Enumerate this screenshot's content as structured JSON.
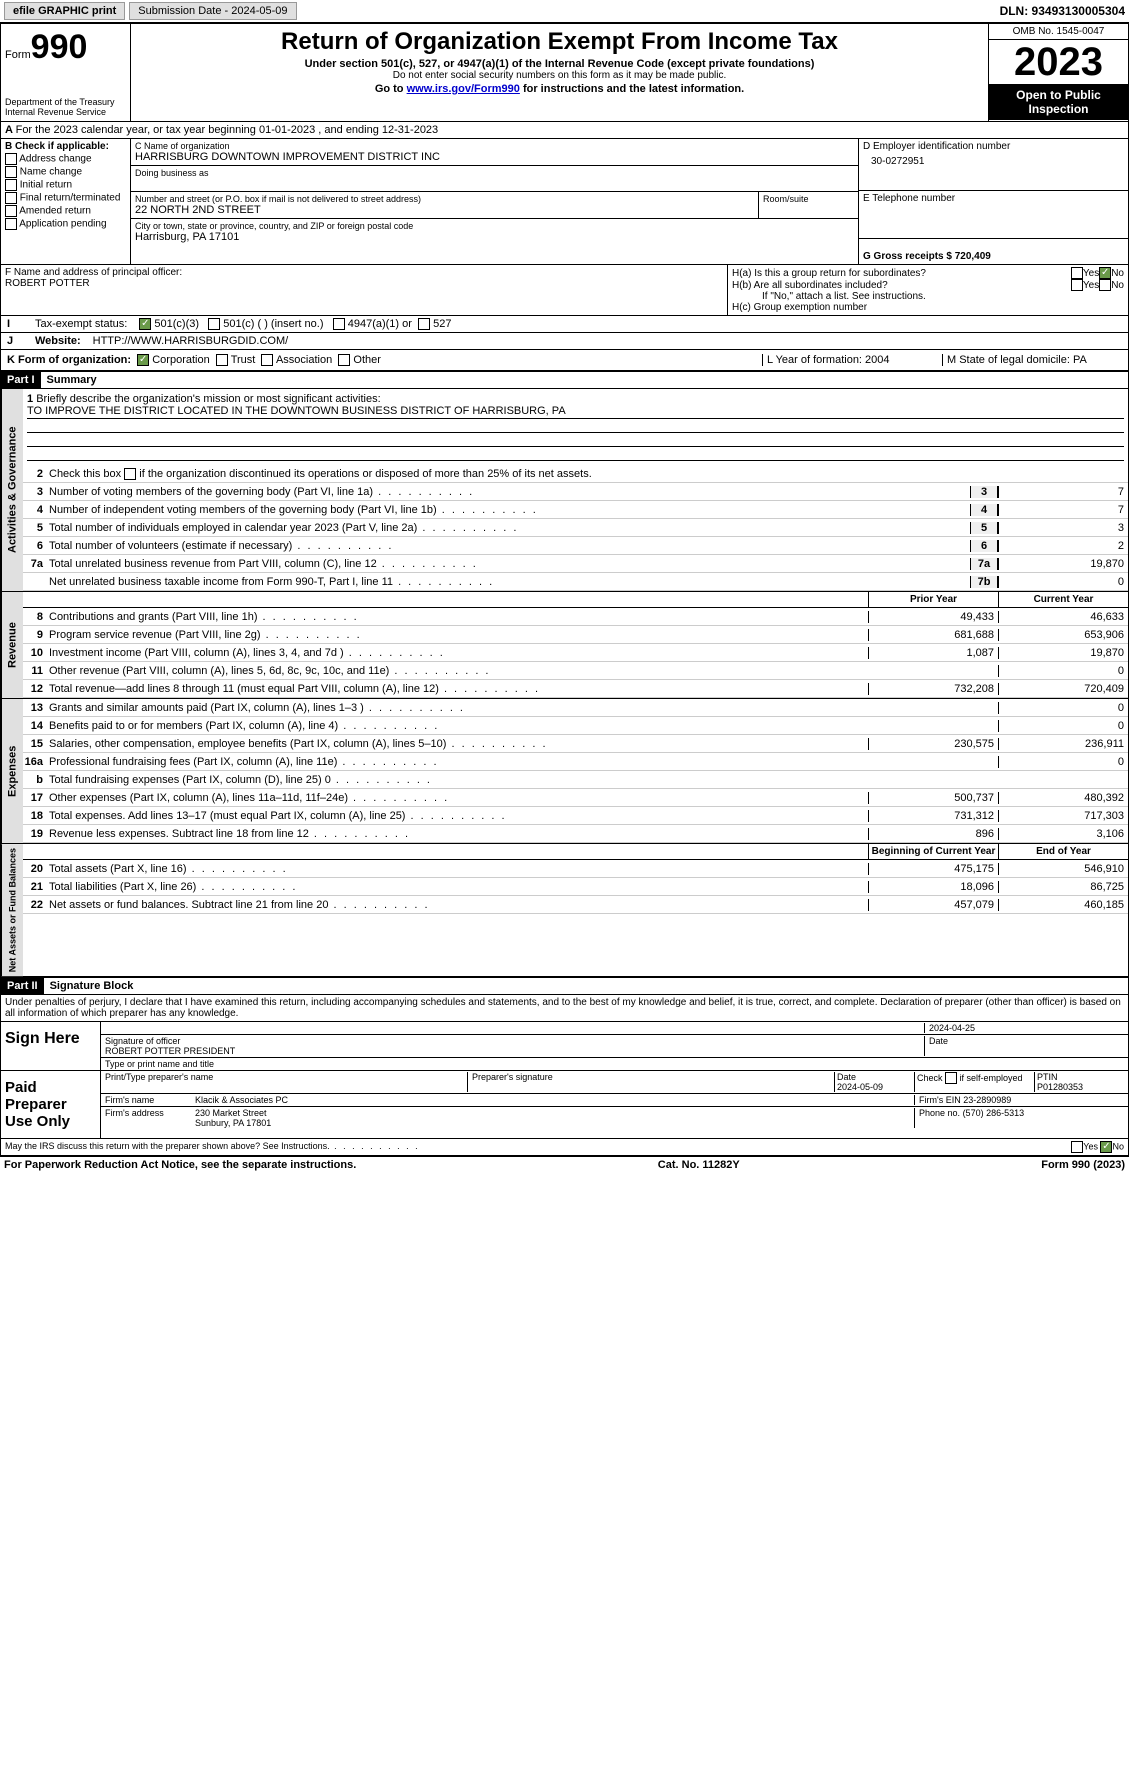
{
  "topbar": {
    "efile": "efile GRAPHIC print",
    "subdate_label": "Submission Date - 2024-05-09",
    "dln": "DLN: 93493130005304"
  },
  "header": {
    "form": "Form",
    "form_num": "990",
    "dept": "Department of the Treasury\nInternal Revenue Service",
    "title": "Return of Organization Exempt From Income Tax",
    "subtitle": "Under section 501(c), 527, or 4947(a)(1) of the Internal Revenue Code (except private foundations)",
    "warn": "Do not enter social security numbers on this form as it may be made public.",
    "goto": "Go to ",
    "link": "www.irs.gov/Form990",
    "goto2": " for instructions and the latest information.",
    "omb": "OMB No. 1545-0047",
    "year": "2023",
    "inspect": "Open to Public Inspection"
  },
  "rowA": "For the 2023 calendar year, or tax year beginning 01-01-2023   , and ending 12-31-2023",
  "boxB": {
    "label": "B Check if applicable:",
    "opts": [
      "Address change",
      "Name change",
      "Initial return",
      "Final return/terminated",
      "Amended return",
      "Application pending"
    ]
  },
  "boxC": {
    "name_label": "C Name of organization",
    "name": "HARRISBURG DOWNTOWN IMPROVEMENT DISTRICT INC",
    "dba_label": "Doing business as",
    "addr_label": "Number and street (or P.O. box if mail is not delivered to street address)",
    "addr": "22 NORTH 2ND STREET",
    "room_label": "Room/suite",
    "city_label": "City or town, state or province, country, and ZIP or foreign postal code",
    "city": "Harrisburg, PA  17101"
  },
  "boxD": {
    "label": "D Employer identification number",
    "val": "30-0272951"
  },
  "boxE": {
    "label": "E Telephone number"
  },
  "boxG": {
    "label": "G Gross receipts $ 720,409"
  },
  "boxF": {
    "label": "F  Name and address of principal officer:",
    "val": "ROBERT POTTER"
  },
  "boxH": {
    "a": "H(a)  Is this a group return for subordinates?",
    "b": "H(b)  Are all subordinates included?",
    "c_note": "If \"No,\" attach a list. See instructions.",
    "c": "H(c)  Group exemption number",
    "yes": "Yes",
    "no": "No"
  },
  "rowI": {
    "label": "Tax-exempt status:",
    "opts": [
      "501(c)(3)",
      "501(c) (  ) (insert no.)",
      "4947(a)(1) or",
      "527"
    ]
  },
  "rowJ": {
    "label": "Website:",
    "val": "HTTP://WWW.HARRISBURGDID.COM/"
  },
  "rowK": {
    "label": "K Form of organization:",
    "opts": [
      "Corporation",
      "Trust",
      "Association",
      "Other"
    ]
  },
  "rowL": {
    "label": "L Year of formation: 2004"
  },
  "rowM": {
    "label": "M State of legal domicile: PA"
  },
  "part1": {
    "hdr": "Part I",
    "title": "Summary",
    "line1_label": "Briefly describe the organization's mission or most significant activities:",
    "line1_val": "TO IMPROVE THE DISTRICT LOCATED IN THE DOWNTOWN BUSINESS DISTRICT OF HARRISBURG, PA",
    "line2": "Check this box      if the organization discontinued its operations or disposed of more than 25% of its net assets.",
    "vtab_ag": "Activities & Governance",
    "vtab_rev": "Revenue",
    "vtab_exp": "Expenses",
    "vtab_na": "Net Assets or Fund Balances",
    "prior_year": "Prior Year",
    "current_year": "Current Year",
    "bocy": "Beginning of Current Year",
    "eoy": "End of Year",
    "lines_ag": [
      {
        "n": "3",
        "t": "Number of voting members of the governing body (Part VI, line 1a)",
        "b": "3",
        "v": "7"
      },
      {
        "n": "4",
        "t": "Number of independent voting members of the governing body (Part VI, line 1b)",
        "b": "4",
        "v": "7"
      },
      {
        "n": "5",
        "t": "Total number of individuals employed in calendar year 2023 (Part V, line 2a)",
        "b": "5",
        "v": "3"
      },
      {
        "n": "6",
        "t": "Total number of volunteers (estimate if necessary)",
        "b": "6",
        "v": "2"
      },
      {
        "n": "7a",
        "t": "Total unrelated business revenue from Part VIII, column (C), line 12",
        "b": "7a",
        "v": "19,870"
      },
      {
        "n": "",
        "t": "Net unrelated business taxable income from Form 990-T, Part I, line 11",
        "b": "7b",
        "v": "0"
      }
    ],
    "lines_rev": [
      {
        "n": "8",
        "t": "Contributions and grants (Part VIII, line 1h)",
        "py": "49,433",
        "cy": "46,633"
      },
      {
        "n": "9",
        "t": "Program service revenue (Part VIII, line 2g)",
        "py": "681,688",
        "cy": "653,906"
      },
      {
        "n": "10",
        "t": "Investment income (Part VIII, column (A), lines 3, 4, and 7d )",
        "py": "1,087",
        "cy": "19,870"
      },
      {
        "n": "11",
        "t": "Other revenue (Part VIII, column (A), lines 5, 6d, 8c, 9c, 10c, and 11e)",
        "py": "",
        "cy": "0"
      },
      {
        "n": "12",
        "t": "Total revenue—add lines 8 through 11 (must equal Part VIII, column (A), line 12)",
        "py": "732,208",
        "cy": "720,409"
      }
    ],
    "lines_exp": [
      {
        "n": "13",
        "t": "Grants and similar amounts paid (Part IX, column (A), lines 1–3 )",
        "py": "",
        "cy": "0"
      },
      {
        "n": "14",
        "t": "Benefits paid to or for members (Part IX, column (A), line 4)",
        "py": "",
        "cy": "0"
      },
      {
        "n": "15",
        "t": "Salaries, other compensation, employee benefits (Part IX, column (A), lines 5–10)",
        "py": "230,575",
        "cy": "236,911"
      },
      {
        "n": "16a",
        "t": "Professional fundraising fees (Part IX, column (A), line 11e)",
        "py": "",
        "cy": "0"
      },
      {
        "n": "b",
        "t": "Total fundraising expenses (Part IX, column (D), line 25) 0",
        "py": "gray",
        "cy": "gray"
      },
      {
        "n": "17",
        "t": "Other expenses (Part IX, column (A), lines 11a–11d, 11f–24e)",
        "py": "500,737",
        "cy": "480,392"
      },
      {
        "n": "18",
        "t": "Total expenses. Add lines 13–17 (must equal Part IX, column (A), line 25)",
        "py": "731,312",
        "cy": "717,303"
      },
      {
        "n": "19",
        "t": "Revenue less expenses. Subtract line 18 from line 12",
        "py": "896",
        "cy": "3,106"
      }
    ],
    "lines_na": [
      {
        "n": "20",
        "t": "Total assets (Part X, line 16)",
        "py": "475,175",
        "cy": "546,910"
      },
      {
        "n": "21",
        "t": "Total liabilities (Part X, line 26)",
        "py": "18,096",
        "cy": "86,725"
      },
      {
        "n": "22",
        "t": "Net assets or fund balances. Subtract line 21 from line 20",
        "py": "457,079",
        "cy": "460,185"
      }
    ]
  },
  "part2": {
    "hdr": "Part II",
    "title": "Signature Block",
    "decl": "Under penalties of perjury, I declare that I have examined this return, including accompanying schedules and statements, and to the best of my knowledge and belief, it is true, correct, and complete. Declaration of preparer (other than officer) is based on all information of which preparer has any knowledge.",
    "sign_here": "Sign Here",
    "sig_officer": "Signature of officer",
    "sig_name": "ROBERT POTTER  PRESIDENT",
    "sig_type": "Type or print name and title",
    "date_lbl": "Date",
    "date_val": "2024-04-25",
    "paid": "Paid Preparer Use Only",
    "prep_name_lbl": "Print/Type preparer's name",
    "prep_sig_lbl": "Preparer's signature",
    "prep_date_lbl": "Date",
    "prep_date": "2024-05-09",
    "check_self": "Check       if self-employed",
    "ptin_lbl": "PTIN",
    "ptin": "P01280353",
    "firm_name_lbl": "Firm's name",
    "firm_name": "Klacik & Associates PC",
    "firm_ein_lbl": "Firm's EIN",
    "firm_ein": "23-2890989",
    "firm_addr_lbl": "Firm's address",
    "firm_addr": "230 Market Street\nSunbury, PA  17801",
    "phone_lbl": "Phone no.",
    "phone": "(570) 286-5313",
    "discuss": "May the IRS discuss this return with the preparer shown above? See Instructions."
  },
  "footer": {
    "pra": "For Paperwork Reduction Act Notice, see the separate instructions.",
    "cat": "Cat. No. 11282Y",
    "form": "Form 990 (2023)"
  }
}
